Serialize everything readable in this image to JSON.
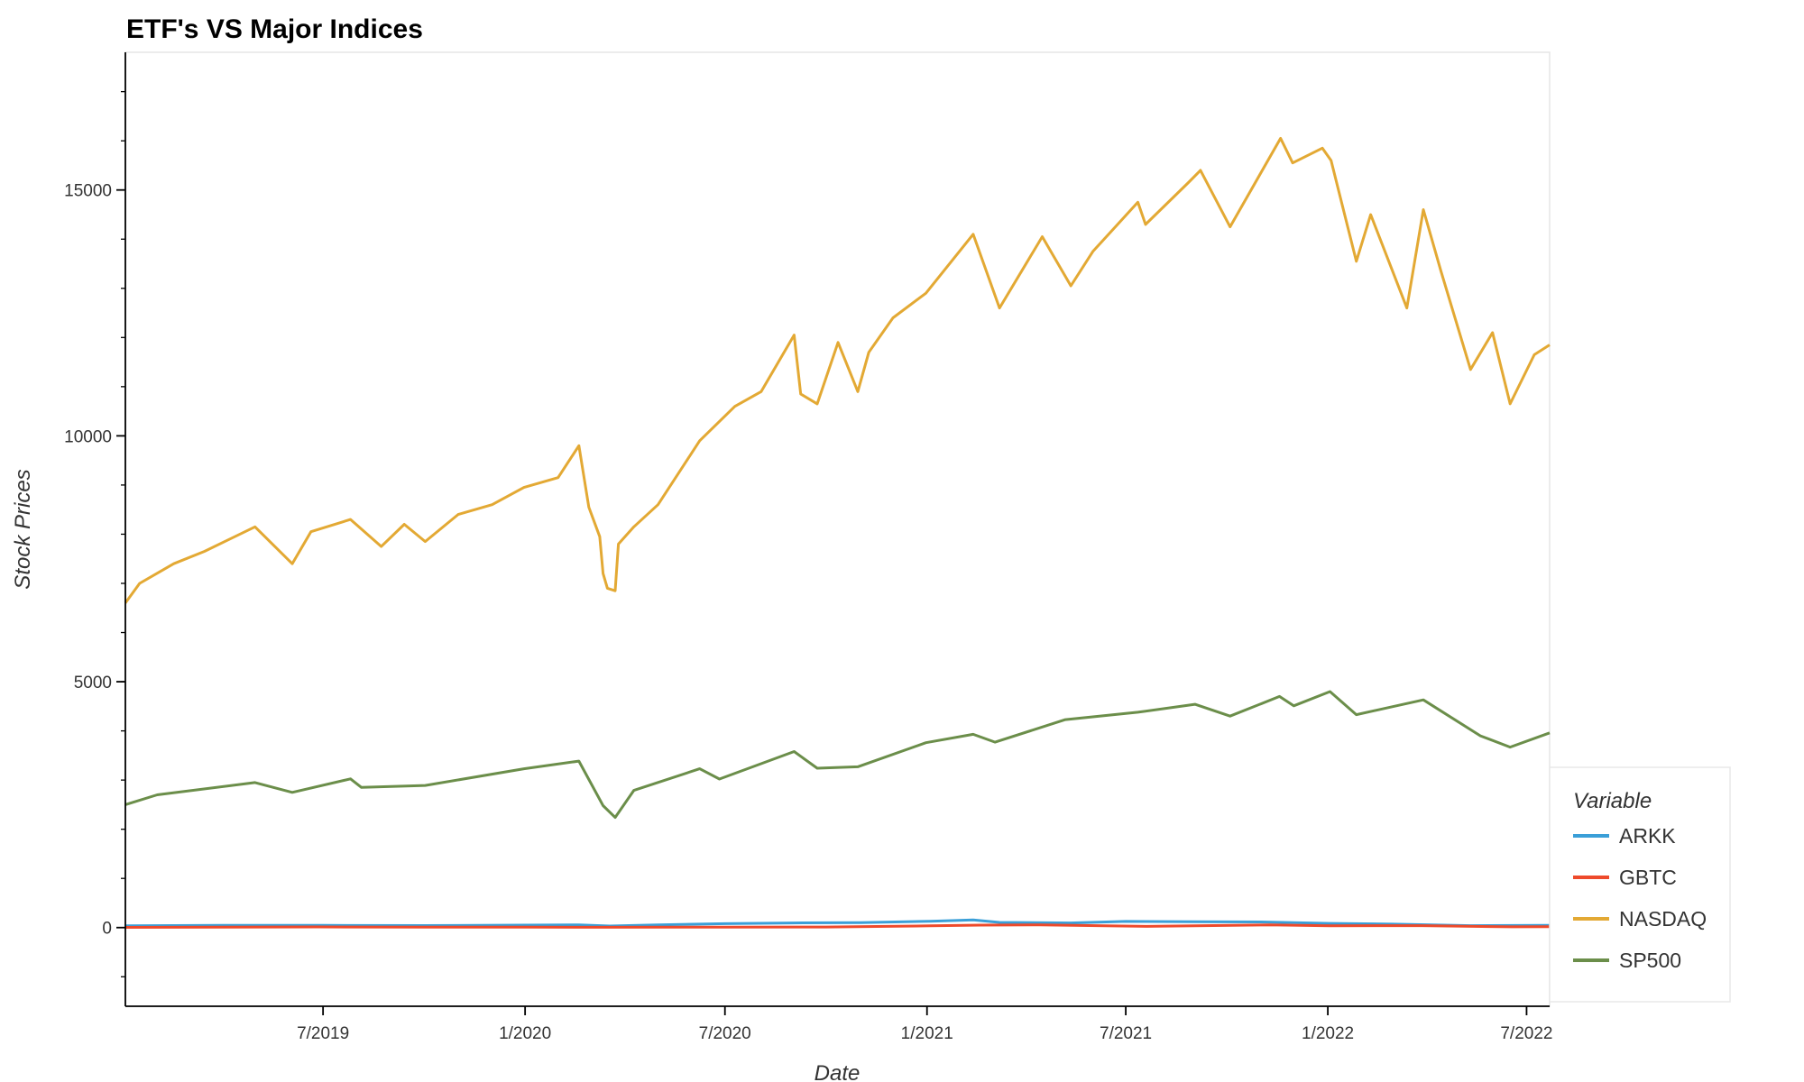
{
  "chart_data": {
    "type": "line",
    "title": "ETF's VS Major Indices",
    "xlabel": "Date",
    "ylabel": "Stock Prices",
    "x_range": [
      "2019-01-02",
      "2022-07-22"
    ],
    "ylim": [
      -1600,
      17800
    ],
    "x_ticks": [
      {
        "date": "2019-07-01",
        "label": "7/2019"
      },
      {
        "date": "2020-01-01",
        "label": "1/2020"
      },
      {
        "date": "2020-07-01",
        "label": "7/2020"
      },
      {
        "date": "2021-01-01",
        "label": "1/2021"
      },
      {
        "date": "2021-07-01",
        "label": "7/2021"
      },
      {
        "date": "2022-01-01",
        "label": "1/2022"
      },
      {
        "date": "2022-07-01",
        "label": "7/2022"
      }
    ],
    "y_ticks": [
      {
        "value": 0,
        "label": "0"
      },
      {
        "value": 5000,
        "label": "5000"
      },
      {
        "value": 10000,
        "label": "10000"
      },
      {
        "value": 15000,
        "label": "15000"
      }
    ],
    "y_minor_step": 1000,
    "grid": false,
    "legend": {
      "title": "Variable",
      "position": "right"
    },
    "series": [
      {
        "name": "ARKK",
        "color": "#3a9fd8",
        "points": [
          [
            "2019-01-02",
            35
          ],
          [
            "2019-04-01",
            45
          ],
          [
            "2019-07-01",
            45
          ],
          [
            "2019-10-01",
            42
          ],
          [
            "2020-01-02",
            50
          ],
          [
            "2020-02-19",
            55
          ],
          [
            "2020-03-18",
            32
          ],
          [
            "2020-05-01",
            55
          ],
          [
            "2020-07-01",
            80
          ],
          [
            "2020-09-01",
            95
          ],
          [
            "2020-11-02",
            100
          ],
          [
            "2021-01-04",
            130
          ],
          [
            "2021-02-12",
            155
          ],
          [
            "2021-03-08",
            105
          ],
          [
            "2021-05-12",
            95
          ],
          [
            "2021-07-01",
            125
          ],
          [
            "2021-09-01",
            120
          ],
          [
            "2021-11-01",
            115
          ],
          [
            "2022-01-03",
            85
          ],
          [
            "2022-03-01",
            70
          ],
          [
            "2022-05-11",
            40
          ],
          [
            "2022-07-22",
            45
          ]
        ]
      },
      {
        "name": "GBTC",
        "color": "#ee4a2b",
        "points": [
          [
            "2019-01-02",
            4
          ],
          [
            "2019-06-26",
            14
          ],
          [
            "2019-10-01",
            8
          ],
          [
            "2020-01-02",
            8
          ],
          [
            "2020-03-16",
            6
          ],
          [
            "2020-07-01",
            10
          ],
          [
            "2020-10-01",
            11
          ],
          [
            "2021-01-04",
            35
          ],
          [
            "2021-02-19",
            50
          ],
          [
            "2021-04-14",
            55
          ],
          [
            "2021-07-20",
            25
          ],
          [
            "2021-11-09",
            55
          ],
          [
            "2022-01-03",
            38
          ],
          [
            "2022-03-28",
            40
          ],
          [
            "2022-06-18",
            15
          ],
          [
            "2022-07-22",
            17
          ]
        ]
      },
      {
        "name": "NASDAQ",
        "color": "#e3a934",
        "points": [
          [
            "2019-01-02",
            6600
          ],
          [
            "2019-01-15",
            7000
          ],
          [
            "2019-02-15",
            7400
          ],
          [
            "2019-03-15",
            7650
          ],
          [
            "2019-04-30",
            8150
          ],
          [
            "2019-06-03",
            7400
          ],
          [
            "2019-06-20",
            8050
          ],
          [
            "2019-07-26",
            8300
          ],
          [
            "2019-08-23",
            7750
          ],
          [
            "2019-09-13",
            8200
          ],
          [
            "2019-10-02",
            7850
          ],
          [
            "2019-11-01",
            8400
          ],
          [
            "2019-12-02",
            8600
          ],
          [
            "2019-12-31",
            8950
          ],
          [
            "2020-01-31",
            9150
          ],
          [
            "2020-02-19",
            9800
          ],
          [
            "2020-02-28",
            8550
          ],
          [
            "2020-03-09",
            7950
          ],
          [
            "2020-03-12",
            7200
          ],
          [
            "2020-03-16",
            6900
          ],
          [
            "2020-03-23",
            6850
          ],
          [
            "2020-03-26",
            7800
          ],
          [
            "2020-04-09",
            8150
          ],
          [
            "2020-05-01",
            8600
          ],
          [
            "2020-06-08",
            9900
          ],
          [
            "2020-07-10",
            10600
          ],
          [
            "2020-08-03",
            10900
          ],
          [
            "2020-09-02",
            12050
          ],
          [
            "2020-09-08",
            10850
          ],
          [
            "2020-09-23",
            10650
          ],
          [
            "2020-10-12",
            11900
          ],
          [
            "2020-10-30",
            10900
          ],
          [
            "2020-11-09",
            11700
          ],
          [
            "2020-12-01",
            12400
          ],
          [
            "2020-12-31",
            12900
          ],
          [
            "2021-02-12",
            14100
          ],
          [
            "2021-03-08",
            12600
          ],
          [
            "2021-04-16",
            14050
          ],
          [
            "2021-05-12",
            13050
          ],
          [
            "2021-06-01",
            13750
          ],
          [
            "2021-07-12",
            14750
          ],
          [
            "2021-07-19",
            14300
          ],
          [
            "2021-08-27",
            15150
          ],
          [
            "2021-09-07",
            15400
          ],
          [
            "2021-10-04",
            14250
          ],
          [
            "2021-11-19",
            16050
          ],
          [
            "2021-11-30",
            15550
          ],
          [
            "2021-12-27",
            15850
          ],
          [
            "2022-01-04",
            15600
          ],
          [
            "2022-01-27",
            13550
          ],
          [
            "2022-02-09",
            14500
          ],
          [
            "2022-03-14",
            12600
          ],
          [
            "2022-03-29",
            14600
          ],
          [
            "2022-04-14",
            13350
          ],
          [
            "2022-05-11",
            11350
          ],
          [
            "2022-05-31",
            12100
          ],
          [
            "2022-06-16",
            10650
          ],
          [
            "2022-07-08",
            11650
          ],
          [
            "2022-07-22",
            11850
          ]
        ]
      },
      {
        "name": "SP500",
        "color": "#6b8e4a",
        "points": [
          [
            "2019-01-02",
            2500
          ],
          [
            "2019-01-31",
            2700
          ],
          [
            "2019-04-30",
            2950
          ],
          [
            "2019-06-03",
            2750
          ],
          [
            "2019-07-26",
            3025
          ],
          [
            "2019-08-05",
            2850
          ],
          [
            "2019-10-02",
            2890
          ],
          [
            "2019-12-31",
            3230
          ],
          [
            "2020-02-19",
            3385
          ],
          [
            "2020-03-12",
            2480
          ],
          [
            "2020-03-23",
            2240
          ],
          [
            "2020-04-09",
            2790
          ],
          [
            "2020-06-08",
            3230
          ],
          [
            "2020-06-26",
            3020
          ],
          [
            "2020-09-02",
            3580
          ],
          [
            "2020-09-23",
            3240
          ],
          [
            "2020-10-30",
            3270
          ],
          [
            "2020-12-31",
            3760
          ],
          [
            "2021-02-12",
            3930
          ],
          [
            "2021-03-04",
            3770
          ],
          [
            "2021-05-07",
            4230
          ],
          [
            "2021-07-12",
            4380
          ],
          [
            "2021-09-02",
            4540
          ],
          [
            "2021-10-04",
            4300
          ],
          [
            "2021-11-18",
            4700
          ],
          [
            "2021-12-01",
            4510
          ],
          [
            "2022-01-03",
            4800
          ],
          [
            "2022-01-27",
            4330
          ],
          [
            "2022-03-29",
            4630
          ],
          [
            "2022-05-20",
            3900
          ],
          [
            "2022-06-16",
            3670
          ],
          [
            "2022-07-22",
            3960
          ]
        ]
      }
    ]
  }
}
